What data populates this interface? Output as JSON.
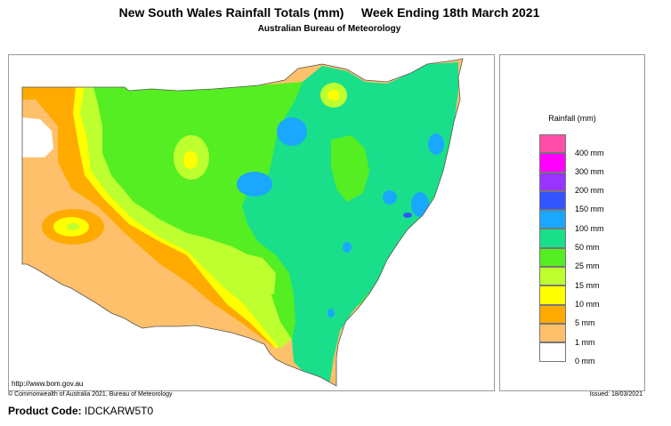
{
  "header": {
    "title": "New South Wales Rainfall Totals (mm)     Week Ending 18th March 2021",
    "subtitle": "Australian Bureau of Meteorology"
  },
  "map": {
    "url": "http://www.bom.gov.au",
    "colors": {
      "under1": "#ffffff",
      "r1_5": "#ffc06b",
      "r5_10": "#ffaa00",
      "r10_15": "#ffff00",
      "r15_25": "#bdff2f",
      "r25_50": "#55ee22",
      "r50_100": "#1adf8a",
      "r100_150": "#1aa8ff",
      "r150_200": "#3355ff",
      "r200_300": "#9933ff",
      "r300_400": "#ff00ff",
      "r400plus": "#ff4fa8"
    }
  },
  "legend": {
    "title": "Rainfall (mm)",
    "items": [
      {
        "label": "400 mm",
        "color": "#ff4fa8"
      },
      {
        "label": "300 mm",
        "color": "#ff00ff"
      },
      {
        "label": "200 mm",
        "color": "#9933ff"
      },
      {
        "label": "150 mm",
        "color": "#3355ff"
      },
      {
        "label": "100 mm",
        "color": "#1aa8ff"
      },
      {
        "label": "50 mm",
        "color": "#1adf8a"
      },
      {
        "label": "25 mm",
        "color": "#55ee22"
      },
      {
        "label": "15 mm",
        "color": "#bdff2f"
      },
      {
        "label": "10 mm",
        "color": "#ffff00"
      },
      {
        "label": "5 mm",
        "color": "#ffaa00"
      },
      {
        "label": "1 mm",
        "color": "#ffc06b"
      },
      {
        "label": "0 mm",
        "color": "#ffffff"
      }
    ]
  },
  "footer": {
    "copyright": "© Commonwealth of Australia 2021, Bureau of Meteorology",
    "issued": "Issued: 18/03/2021"
  },
  "product": {
    "label": "Product Code:",
    "code": "IDCKARW5T0"
  }
}
